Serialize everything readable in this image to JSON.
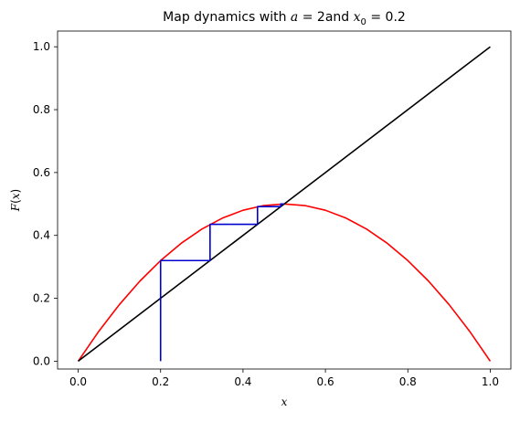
{
  "chart_data": {
    "type": "line",
    "title": {
      "prefix": "Map dynamics with ",
      "a_symbol": "a",
      "a_value": " = 2",
      "middle": "and ",
      "x0_symbol": "x",
      "x0_subscript": "0",
      "x0_value": " = 0.2"
    },
    "xlabel": "x",
    "ylabel": {
      "func": "F",
      "open": "(",
      "var": "x",
      "close": ")"
    },
    "xlim": [
      -0.05,
      1.05
    ],
    "ylim": [
      -0.025,
      1.05
    ],
    "xticks": [
      0.0,
      0.2,
      0.4,
      0.6,
      0.8,
      1.0
    ],
    "yticks": [
      0.0,
      0.2,
      0.4,
      0.6,
      0.8,
      1.0
    ],
    "xtick_labels": [
      "0.0",
      "0.2",
      "0.4",
      "0.6",
      "0.8",
      "1.0"
    ],
    "ytick_labels": [
      "0.0",
      "0.2",
      "0.4",
      "0.6",
      "0.8",
      "1.0"
    ],
    "grid": false,
    "series": [
      {
        "color": "#ff0000",
        "x": [
          0.0,
          0.05,
          0.1,
          0.15,
          0.2,
          0.25,
          0.3,
          0.35,
          0.4,
          0.45,
          0.5,
          0.55,
          0.6,
          0.65,
          0.7,
          0.75,
          0.8,
          0.85,
          0.9,
          0.95,
          1.0
        ],
        "y": [
          0.0,
          0.095,
          0.18,
          0.255,
          0.32,
          0.375,
          0.42,
          0.455,
          0.48,
          0.495,
          0.5,
          0.495,
          0.48,
          0.455,
          0.42,
          0.375,
          0.32,
          0.255,
          0.18,
          0.095,
          0.0
        ]
      },
      {
        "color": "#000000",
        "x": [
          0.0,
          1.0
        ],
        "y": [
          0.0,
          1.0
        ]
      },
      {
        "color": "#0000cc",
        "x": [
          0.2,
          0.2,
          0.32,
          0.32,
          0.4352,
          0.4352,
          0.4916,
          0.4916,
          0.4999
        ],
        "y": [
          0.0,
          0.32,
          0.32,
          0.4352,
          0.4352,
          0.4916,
          0.4916,
          0.4999,
          0.4999
        ]
      }
    ]
  }
}
